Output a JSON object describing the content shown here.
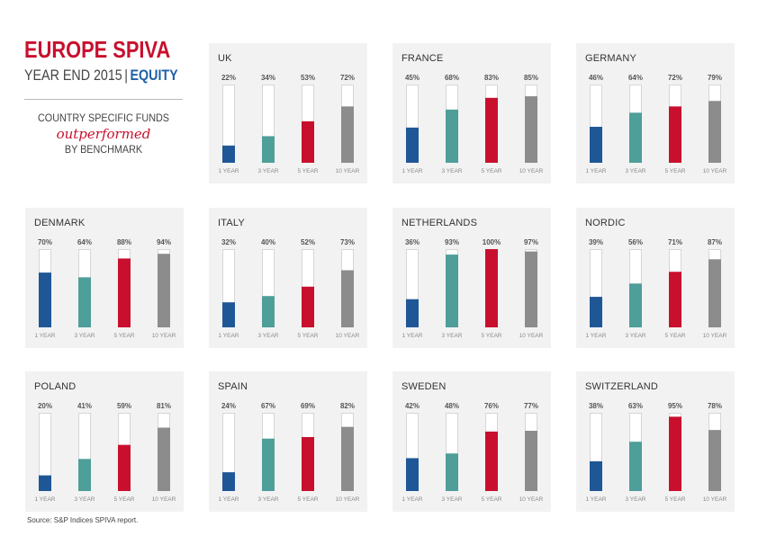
{
  "header": {
    "title": "EUROPE SPIVA",
    "subtitle_main": "YEAR END 2015",
    "subtitle_sep": "|",
    "subtitle_accent": "EQUITY",
    "caption_line1": "COUNTRY SPECIFIC FUNDS",
    "caption_line2": "outperformed",
    "caption_line3": "BY BENCHMARK"
  },
  "footer": {
    "source": "Source: S&P Indices SPIVA report."
  },
  "colors": {
    "title_red": "#c8102e",
    "accent_blue": "#1f5fa8",
    "panel_bg": "#f2f2f2",
    "bar_colors": [
      "#1f5796",
      "#4e9e99",
      "#c8102e",
      "#8c8c8c"
    ]
  },
  "chart_data": [
    {
      "type": "bar",
      "title": "UK",
      "categories": [
        "1 YEAR",
        "3 YEAR",
        "5 YEAR",
        "10 YEAR"
      ],
      "values": [
        22,
        34,
        53,
        72
      ],
      "value_labels": [
        "22%",
        "34%",
        "53%",
        "72%"
      ],
      "ylim": [
        0,
        100
      ]
    },
    {
      "type": "bar",
      "title": "FRANCE",
      "categories": [
        "1 YEAR",
        "3 YEAR",
        "5 YEAR",
        "10 YEAR"
      ],
      "values": [
        45,
        68,
        83,
        85
      ],
      "value_labels": [
        "45%",
        "68%",
        "83%",
        "85%"
      ],
      "ylim": [
        0,
        100
      ]
    },
    {
      "type": "bar",
      "title": "GERMANY",
      "categories": [
        "1 YEAR",
        "3 YEAR",
        "5 YEAR",
        "10 YEAR"
      ],
      "values": [
        46,
        64,
        72,
        79
      ],
      "value_labels": [
        "46%",
        "64%",
        "72%",
        "79%"
      ],
      "ylim": [
        0,
        100
      ]
    },
    {
      "type": "bar",
      "title": "DENMARK",
      "categories": [
        "1 YEAR",
        "3 YEAR",
        "5 YEAR",
        "10 YEAR"
      ],
      "values": [
        70,
        64,
        88,
        94
      ],
      "value_labels": [
        "70%",
        "64%",
        "88%",
        "94%"
      ],
      "ylim": [
        0,
        100
      ]
    },
    {
      "type": "bar",
      "title": "ITALY",
      "categories": [
        "1 YEAR",
        "3 YEAR",
        "5 YEAR",
        "10 YEAR"
      ],
      "values": [
        32,
        40,
        52,
        73
      ],
      "value_labels": [
        "32%",
        "40%",
        "52%",
        "73%"
      ],
      "ylim": [
        0,
        100
      ]
    },
    {
      "type": "bar",
      "title": "NETHERLANDS",
      "categories": [
        "1 YEAR",
        "3 YEAR",
        "5 YEAR",
        "10 YEAR"
      ],
      "values": [
        36,
        93,
        100,
        97
      ],
      "value_labels": [
        "36%",
        "93%",
        "100%",
        "97%"
      ],
      "ylim": [
        0,
        100
      ]
    },
    {
      "type": "bar",
      "title": "NORDIC",
      "categories": [
        "1 YEAR",
        "3 YEAR",
        "5 YEAR",
        "10 YEAR"
      ],
      "values": [
        39,
        56,
        71,
        87
      ],
      "value_labels": [
        "39%",
        "56%",
        "71%",
        "87%"
      ],
      "ylim": [
        0,
        100
      ]
    },
    {
      "type": "bar",
      "title": "POLAND",
      "categories": [
        "1 YEAR",
        "3 YEAR",
        "5 YEAR",
        "10 YEAR"
      ],
      "values": [
        20,
        41,
        59,
        81
      ],
      "value_labels": [
        "20%",
        "41%",
        "59%",
        "81%"
      ],
      "ylim": [
        0,
        100
      ]
    },
    {
      "type": "bar",
      "title": "SPAIN",
      "categories": [
        "1 YEAR",
        "3 YEAR",
        "5 YEAR",
        "10 YEAR"
      ],
      "values": [
        24,
        67,
        69,
        82
      ],
      "value_labels": [
        "24%",
        "67%",
        "69%",
        "82%"
      ],
      "ylim": [
        0,
        100
      ]
    },
    {
      "type": "bar",
      "title": "SWEDEN",
      "categories": [
        "1 YEAR",
        "3 YEAR",
        "5 YEAR",
        "10 YEAR"
      ],
      "values": [
        42,
        48,
        76,
        77
      ],
      "value_labels": [
        "42%",
        "48%",
        "76%",
        "77%"
      ],
      "ylim": [
        0,
        100
      ]
    },
    {
      "type": "bar",
      "title": "SWITZERLAND",
      "categories": [
        "1 YEAR",
        "3 YEAR",
        "5 YEAR",
        "10 YEAR"
      ],
      "values": [
        38,
        63,
        95,
        78
      ],
      "value_labels": [
        "38%",
        "63%",
        "95%",
        "78%"
      ],
      "ylim": [
        0,
        100
      ]
    }
  ]
}
